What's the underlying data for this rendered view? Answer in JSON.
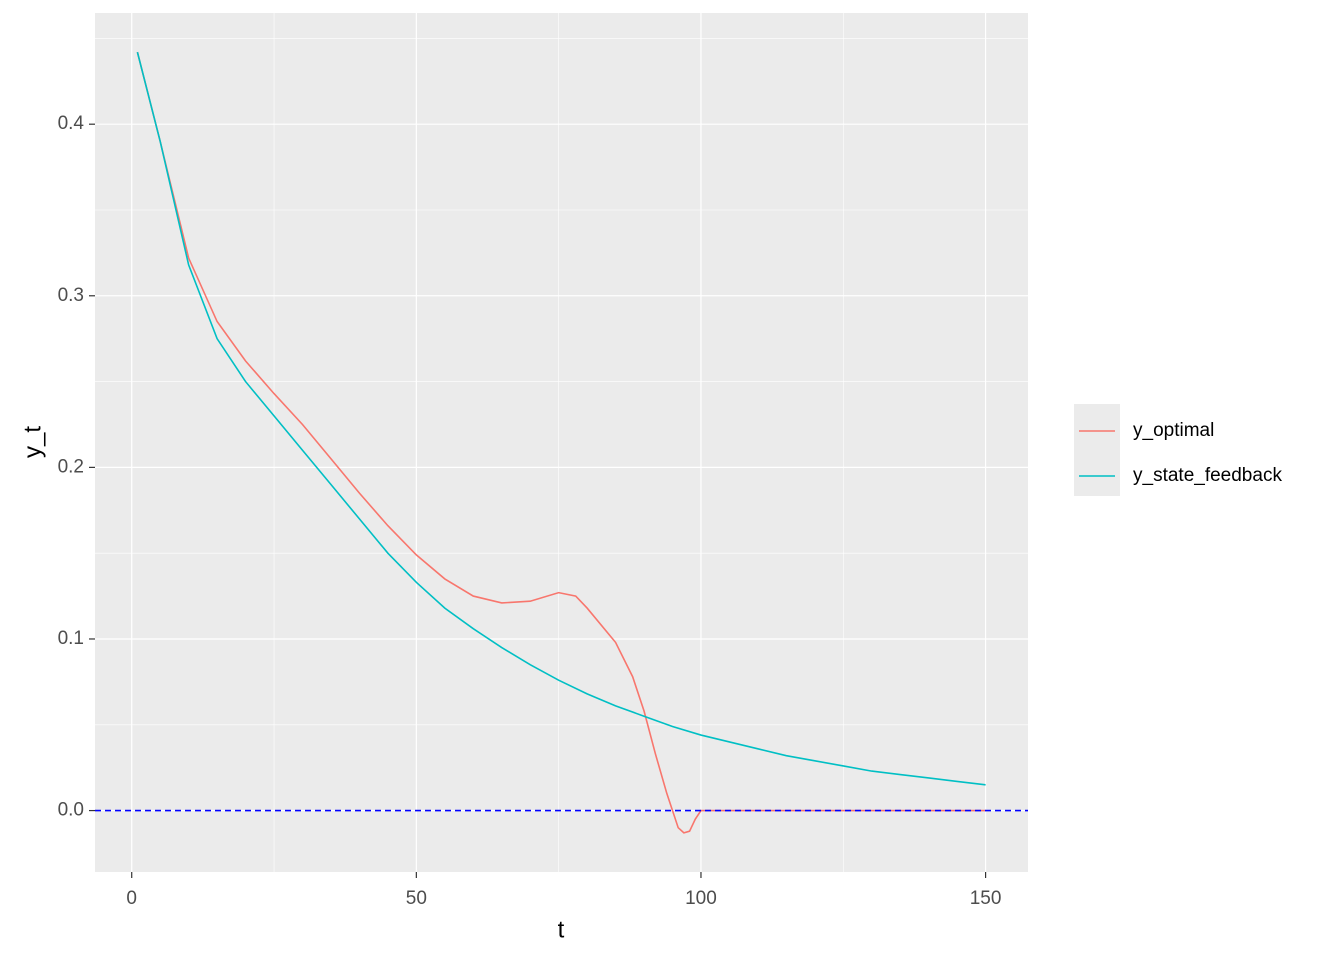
{
  "chart_data": {
    "type": "line",
    "xlabel": "t",
    "ylabel": "y_t",
    "xlim": [
      -6.45,
      157.45
    ],
    "xticks": [
      0,
      50,
      100,
      150
    ],
    "x_minor_breaks": [
      25,
      75,
      125
    ],
    "ylim": [
      -0.0358,
      0.4648
    ],
    "yticks": [
      {
        "value": 0,
        "label": "0.0"
      },
      {
        "value": 0.1,
        "label": "0.1"
      },
      {
        "value": 0.2,
        "label": "0.2"
      },
      {
        "value": 0.3,
        "label": "0.3"
      },
      {
        "value": 0.4,
        "label": "0.4"
      }
    ],
    "y_minor_breaks": [
      0.05,
      0.15,
      0.25,
      0.35,
      0.45
    ],
    "grid": true,
    "legend": "right",
    "hline": {
      "y": 0,
      "color": "#0000ff",
      "dashed": true
    },
    "series": [
      {
        "name": "y_optimal",
        "color": "#F8766D",
        "x": [
          1,
          5,
          10,
          15,
          20,
          25,
          30,
          35,
          40,
          45,
          50,
          55,
          60,
          65,
          70,
          75,
          78,
          80,
          85,
          88,
          90,
          92,
          94,
          96,
          97,
          98,
          99,
          100,
          105,
          110,
          115,
          120,
          125,
          130,
          135,
          140,
          145,
          150
        ],
        "values": [
          0.442,
          0.39,
          0.322,
          0.285,
          0.262,
          0.243,
          0.225,
          0.205,
          0.185,
          0.166,
          0.149,
          0.135,
          0.125,
          0.121,
          0.122,
          0.127,
          0.125,
          0.118,
          0.098,
          0.078,
          0.058,
          0.033,
          0.01,
          -0.01,
          -0.013,
          -0.012,
          -0.005,
          0,
          0,
          0,
          0,
          0,
          0,
          0,
          0,
          0,
          0,
          0
        ]
      },
      {
        "name": "y_state_feedback",
        "color": "#00BFC4",
        "x": [
          1,
          5,
          10,
          15,
          20,
          25,
          30,
          35,
          40,
          45,
          50,
          55,
          60,
          65,
          70,
          75,
          80,
          85,
          90,
          95,
          100,
          105,
          110,
          115,
          120,
          125,
          130,
          135,
          140,
          145,
          150
        ],
        "values": [
          0.442,
          0.39,
          0.318,
          0.275,
          0.25,
          0.23,
          0.21,
          0.19,
          0.17,
          0.15,
          0.133,
          0.118,
          0.106,
          0.095,
          0.085,
          0.076,
          0.068,
          0.061,
          0.055,
          0.049,
          0.044,
          0.04,
          0.036,
          0.032,
          0.029,
          0.026,
          0.023,
          0.021,
          0.019,
          0.017,
          0.015
        ]
      }
    ]
  }
}
